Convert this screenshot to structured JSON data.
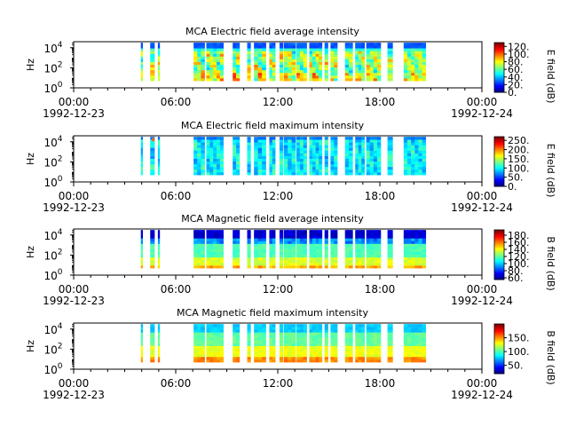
{
  "chart_data": [
    {
      "type": "heatmap",
      "title": "MCA  Electric field average intensity",
      "ylabel": "Hz",
      "yscale": "log",
      "ylim_exponents": [
        0,
        4.6
      ],
      "y_ticks": [
        {
          "base": "10",
          "exp": "0"
        },
        {
          "base": "10",
          "exp": "2"
        },
        {
          "base": "10",
          "exp": "4"
        }
      ],
      "colorbar_label": "E field (dB)",
      "colorbar_range": [
        0,
        130
      ],
      "colorbar_ticks": [
        "0.",
        "20.",
        "40.",
        "60.",
        "80.",
        "100.",
        "120."
      ],
      "colorbar_values": [
        0,
        20,
        40,
        60,
        80,
        100,
        120
      ],
      "profile": "e_avg"
    },
    {
      "type": "heatmap",
      "title": "MCA  Electric field maximum intensity",
      "ylabel": "Hz",
      "yscale": "log",
      "ylim_exponents": [
        0,
        4.6
      ],
      "y_ticks": [
        {
          "base": "10",
          "exp": "0"
        },
        {
          "base": "10",
          "exp": "2"
        },
        {
          "base": "10",
          "exp": "4"
        }
      ],
      "colorbar_label": "E field (dB)",
      "colorbar_range": [
        0,
        270
      ],
      "colorbar_ticks": [
        "0.",
        "50.",
        "100.",
        "150.",
        "200.",
        "250."
      ],
      "colorbar_values": [
        0,
        50,
        100,
        150,
        200,
        250
      ],
      "profile": "e_max"
    },
    {
      "type": "heatmap",
      "title": "MCA  Magnetic field average intensity",
      "ylabel": "Hz",
      "yscale": "log",
      "ylim_exponents": [
        0,
        4.6
      ],
      "y_ticks": [
        {
          "base": "10",
          "exp": "0"
        },
        {
          "base": "10",
          "exp": "2"
        },
        {
          "base": "10",
          "exp": "4"
        }
      ],
      "colorbar_label": "B field (dB)",
      "colorbar_range": [
        55,
        195
      ],
      "colorbar_ticks": [
        "60.",
        "80.",
        "100.",
        "120.",
        "140.",
        "160.",
        "180."
      ],
      "colorbar_values": [
        60,
        80,
        100,
        120,
        140,
        160,
        180
      ],
      "profile": "b_avg"
    },
    {
      "type": "heatmap",
      "title": "MCA  Magnetic field maximum intensity",
      "ylabel": "Hz",
      "yscale": "log",
      "ylim_exponents": [
        0,
        4.6
      ],
      "y_ticks": [
        {
          "base": "10",
          "exp": "0"
        },
        {
          "base": "10",
          "exp": "2"
        },
        {
          "base": "10",
          "exp": "4"
        }
      ],
      "colorbar_label": "B field (dB)",
      "colorbar_range": [
        20,
        200
      ],
      "colorbar_ticks": [
        "50.",
        "100.",
        "150."
      ],
      "colorbar_values": [
        50,
        100,
        150
      ],
      "profile": "b_max"
    }
  ],
  "x_axis": {
    "range_hours": [
      0,
      24
    ],
    "tick_hours": [
      0,
      6,
      12,
      18,
      24
    ],
    "tick_labels": [
      "00:00",
      "06:00",
      "12:00",
      "18:00",
      "00:00"
    ],
    "date_labels": [
      "1992-12-23",
      "1992-12-24"
    ],
    "minor_tick_step_hours": 1
  },
  "data_intervals_hours": [
    [
      3.95,
      4.05
    ],
    [
      4.5,
      4.75
    ],
    [
      4.95,
      5.05
    ],
    [
      7.05,
      7.7
    ],
    [
      7.8,
      8.8
    ],
    [
      9.35,
      9.75
    ],
    [
      10.2,
      10.4
    ],
    [
      10.6,
      11.3
    ],
    [
      11.5,
      11.85
    ],
    [
      12.1,
      12.3
    ],
    [
      12.35,
      13.05
    ],
    [
      13.1,
      13.7
    ],
    [
      13.85,
      14.6
    ],
    [
      14.75,
      14.95
    ],
    [
      15.1,
      15.5
    ],
    [
      15.95,
      16.4
    ],
    [
      16.55,
      17.1
    ],
    [
      17.2,
      18.05
    ],
    [
      18.45,
      18.75
    ],
    [
      19.4,
      20.7
    ]
  ]
}
